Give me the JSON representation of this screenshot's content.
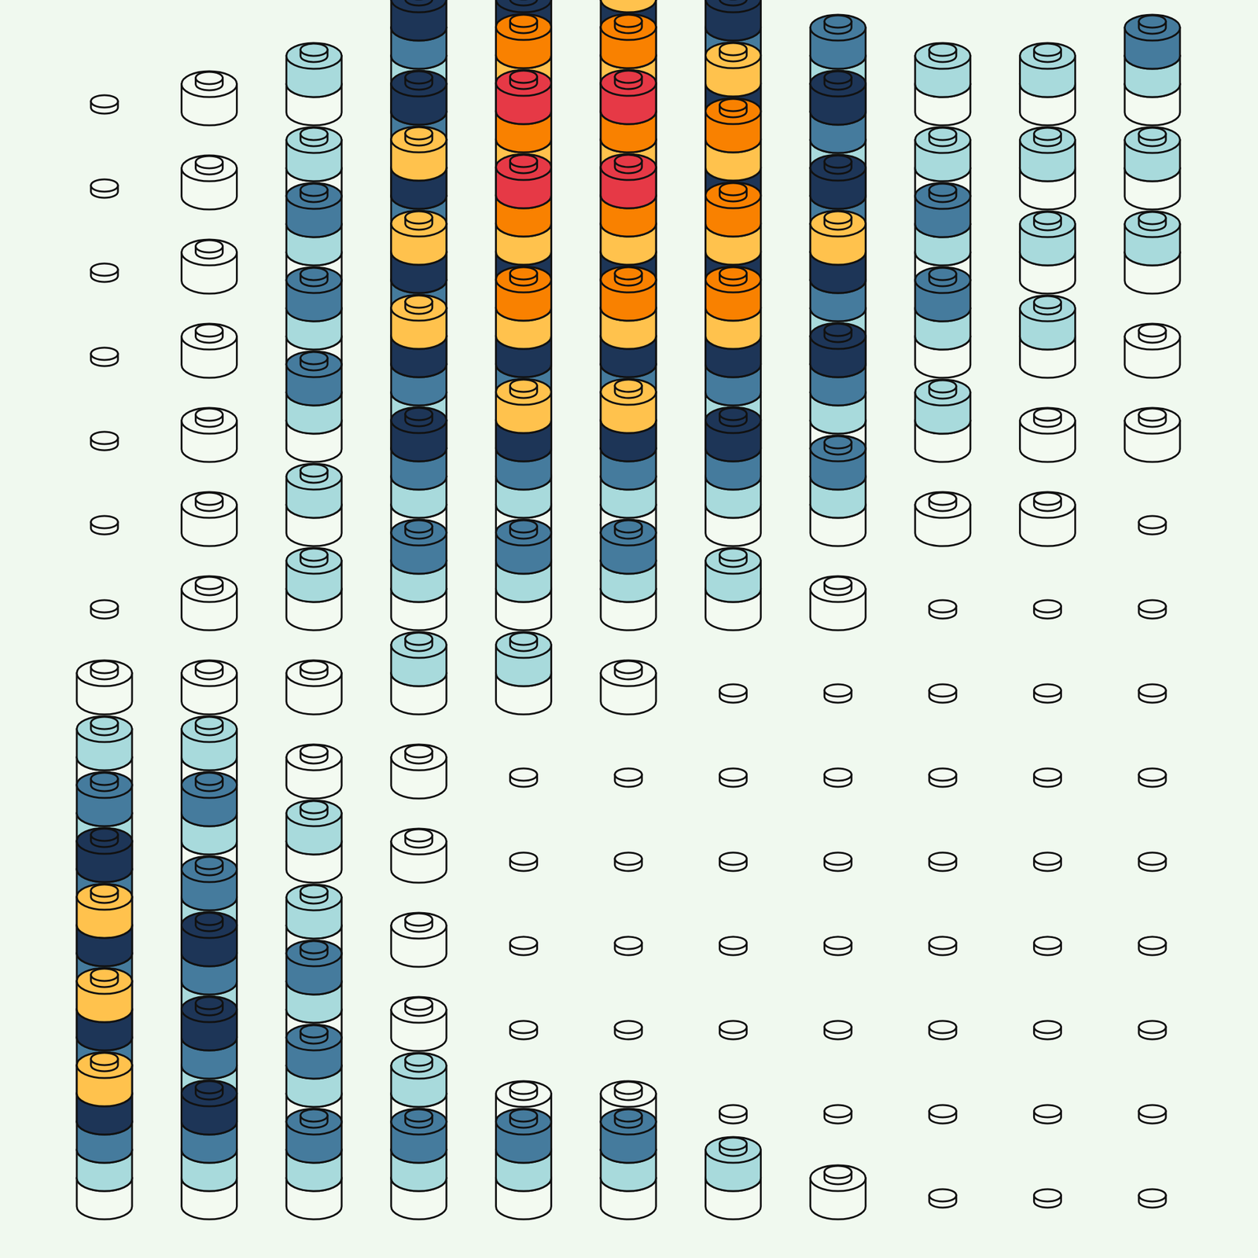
{
  "chart_data": {
    "type": "brick_grid",
    "colors": [
      "#f3faf1",
      "#a8dadc",
      "#457b9d",
      "#1d3557",
      "#ffc24d",
      "#f98100",
      "#e63946"
    ],
    "cells": [
      [
        0,
        1,
        2,
        4,
        4,
        5,
        4,
        3,
        2,
        2,
        3
      ],
      [
        0,
        1,
        2,
        4,
        6,
        6,
        5,
        4,
        2,
        2,
        2
      ],
      [
        0,
        1,
        3,
        5,
        7,
        7,
        6,
        4,
        3,
        2,
        2
      ],
      [
        0,
        1,
        3,
        5,
        7,
        7,
        6,
        5,
        3,
        2,
        1
      ],
      [
        0,
        1,
        3,
        5,
        6,
        6,
        6,
        4,
        2,
        1,
        1
      ],
      [
        0,
        1,
        2,
        4,
        5,
        5,
        4,
        3,
        1,
        1,
        0
      ],
      [
        0,
        1,
        2,
        3,
        3,
        3,
        2,
        1,
        0,
        0,
        0
      ],
      [
        1,
        1,
        1,
        2,
        2,
        1,
        0,
        0,
        0,
        0,
        0
      ],
      [
        2,
        2,
        1,
        1,
        0,
        0,
        0,
        0,
        0,
        0,
        0
      ],
      [
        3,
        3,
        2,
        1,
        0,
        0,
        0,
        0,
        0,
        0,
        0
      ],
      [
        4,
        3,
        2,
        1,
        0,
        0,
        0,
        0,
        0,
        0,
        0
      ],
      [
        5,
        4,
        3,
        1,
        0,
        0,
        0,
        0,
        0,
        0,
        0
      ],
      [
        5,
        4,
        3,
        2,
        1,
        1,
        0,
        0,
        0,
        0,
        0
      ],
      [
        5,
        4,
        3,
        3,
        3,
        3,
        2,
        1,
        0,
        0,
        0
      ]
    ]
  }
}
